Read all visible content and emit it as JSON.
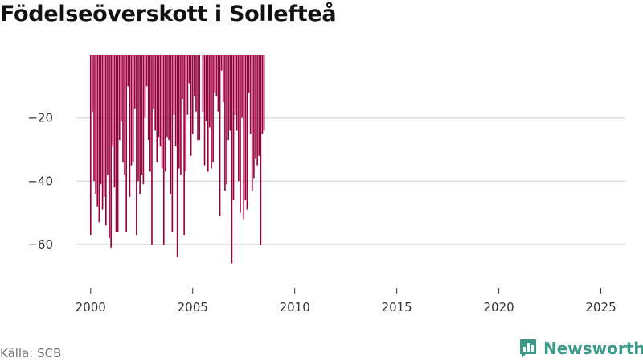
{
  "title": "Födelseöverskott i Sollefteå",
  "source": "Källa: SCB",
  "brand": {
    "name": "Newsworthy",
    "icon": "newsworthy-logo-icon",
    "color": "#3d9a8b"
  },
  "colors": {
    "bar": "#99003d",
    "grid": "#dddddd",
    "axis_text": "#333333"
  },
  "chart_data": {
    "type": "bar",
    "title": "Födelseöverskott i Sollefteå",
    "xlabel": "",
    "ylabel": "",
    "ylim": [
      -73,
      0
    ],
    "xlim": [
      1999.3,
      2026.2
    ],
    "y_ticks": [
      {
        "value": -20,
        "label": "−20"
      },
      {
        "value": -40,
        "label": "−40"
      },
      {
        "value": -60,
        "label": "−60"
      }
    ],
    "x_ticks": [
      {
        "value": 2000,
        "label": "2000"
      },
      {
        "value": 2005,
        "label": "2005"
      },
      {
        "value": 2010,
        "label": "2010"
      },
      {
        "value": 2015,
        "label": "2015"
      },
      {
        "value": 2020,
        "label": "2020"
      },
      {
        "value": 2025,
        "label": "2025"
      }
    ],
    "grid": true,
    "frequency": "monthly",
    "start": 2000.0,
    "step": 0.08333,
    "values": [
      -57,
      -18,
      -40,
      -44,
      -48,
      -53,
      -41,
      -49,
      -45,
      -54,
      -38,
      -58,
      -61,
      -29,
      -42,
      -56,
      -56,
      -27,
      -21,
      -34,
      -38,
      -56,
      -10,
      -45,
      -35,
      -34,
      -17,
      -57,
      -40,
      -44,
      -38,
      -41,
      -20,
      -10,
      -27,
      -37,
      -60,
      -17,
      -24,
      -34,
      -26,
      -29,
      -36,
      -60,
      -37,
      -26,
      -27,
      -44,
      -56,
      -19,
      -29,
      -64,
      -36,
      -38,
      -14,
      -57,
      -37,
      -19,
      -9,
      -32,
      -25,
      -13,
      -18,
      -27,
      -27,
      null,
      -18,
      -35,
      -21,
      -37,
      -23,
      -36,
      -34,
      -12,
      -13,
      -18,
      -51,
      -5,
      -15,
      -43,
      -41,
      -27,
      -24,
      -66,
      -46,
      -19,
      -24,
      -40,
      -50,
      -20,
      -52,
      -46,
      -49,
      -12,
      -25,
      -43,
      -39,
      -33,
      -35,
      -32,
      -60,
      -25,
      -24
    ]
  }
}
